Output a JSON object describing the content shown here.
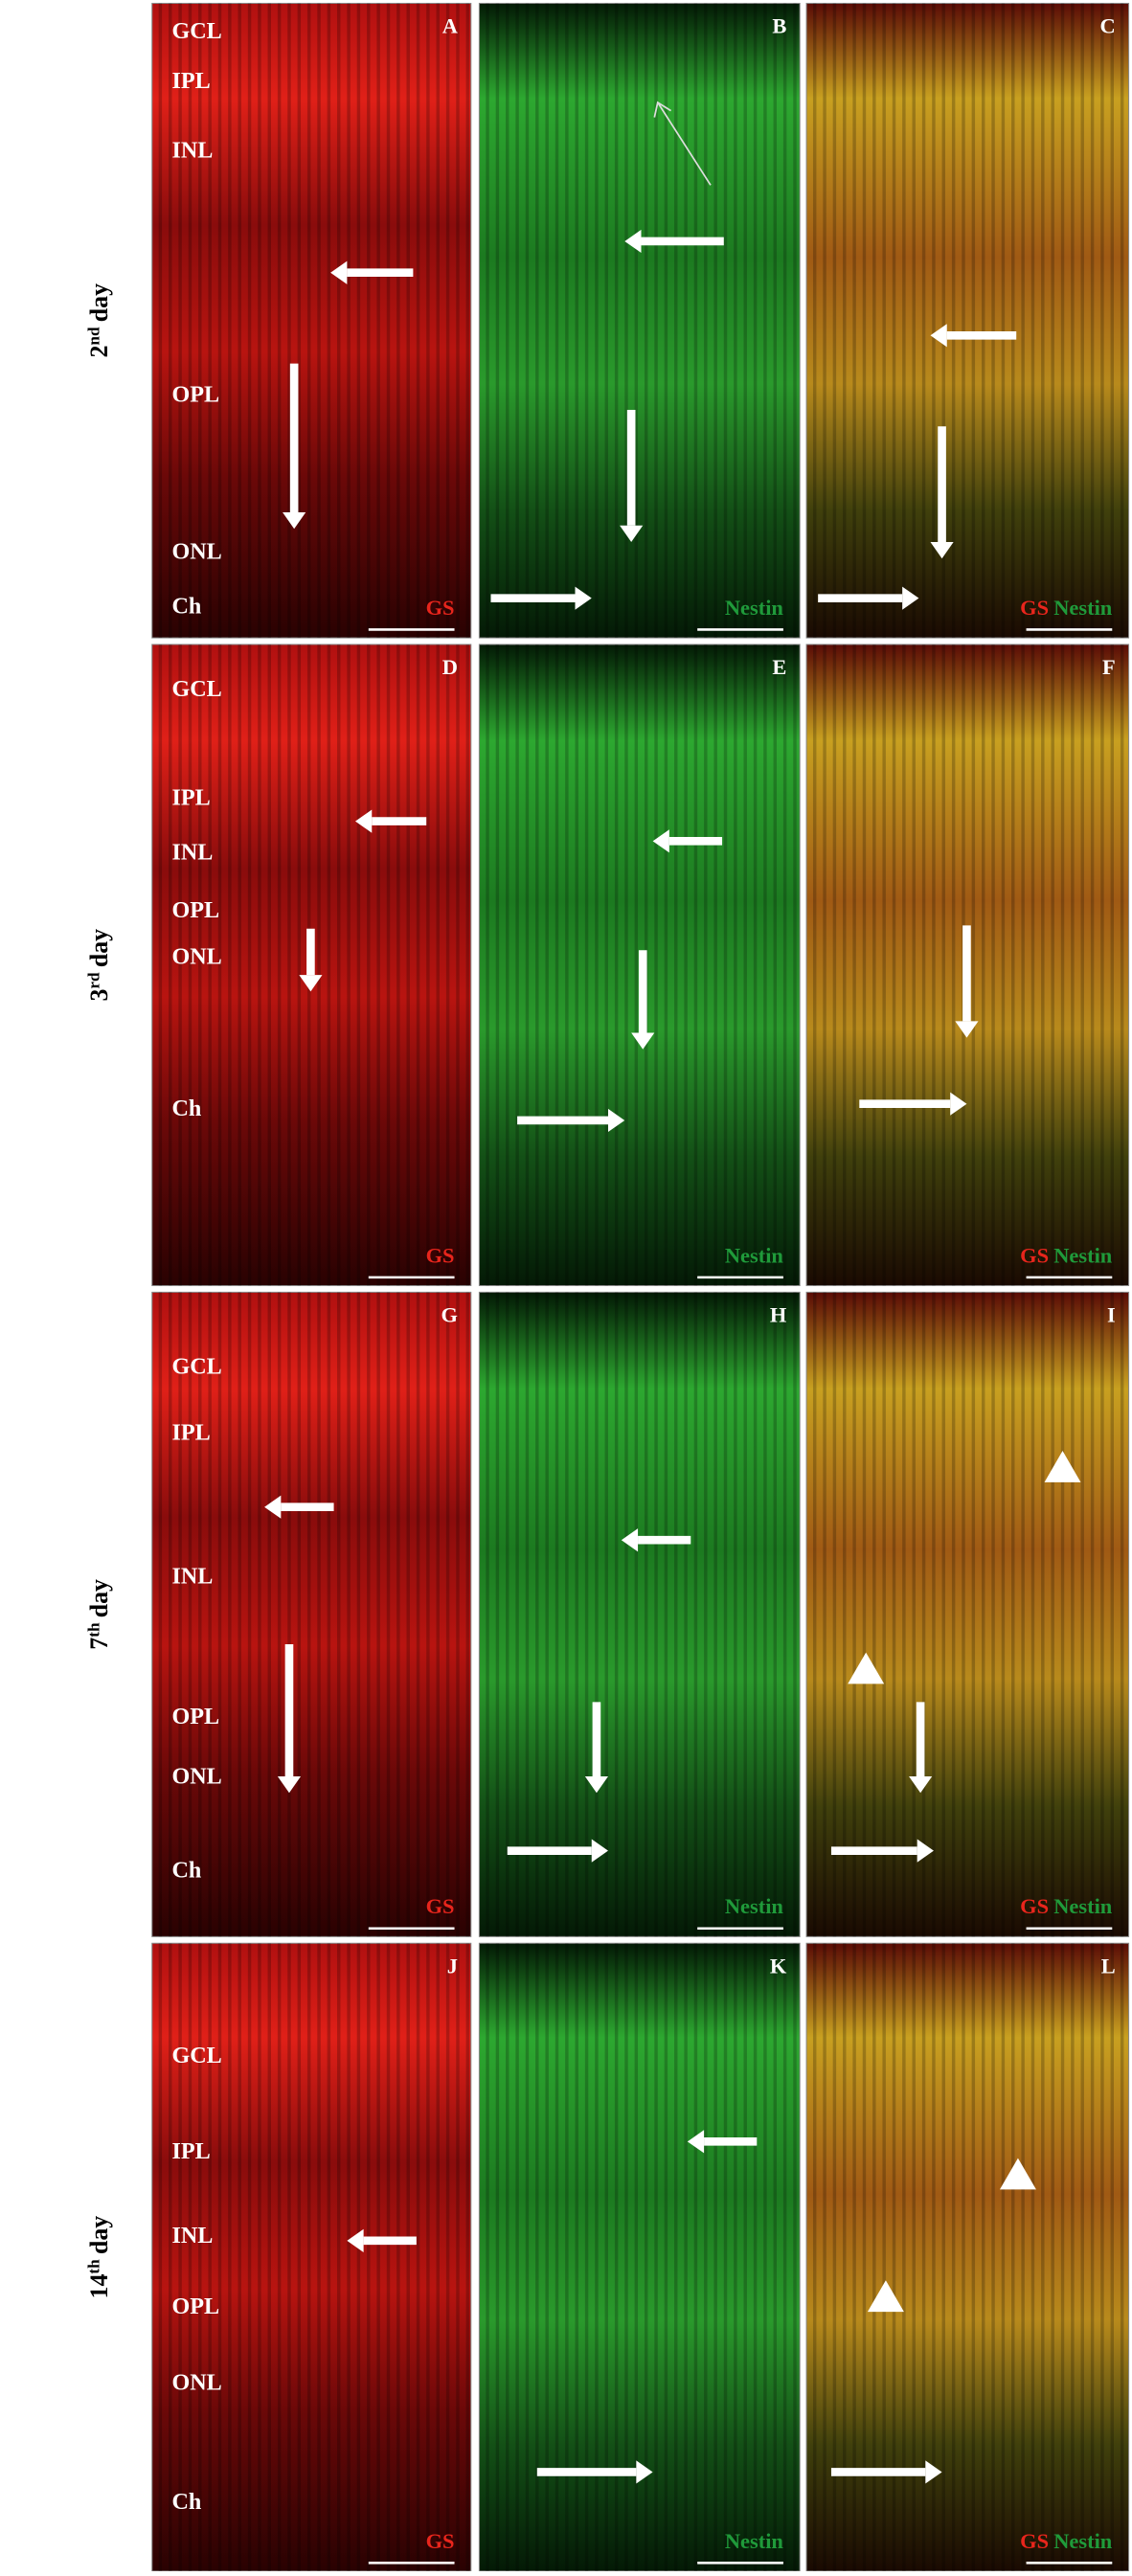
{
  "rows": [
    {
      "day": {
        "number": "2",
        "suffix": "nd",
        "unit": "day"
      },
      "layers": [
        "GCL",
        "IPL",
        "INL",
        "OPL",
        "ONL",
        "Ch"
      ],
      "panels": [
        {
          "letter": "A",
          "stains": [
            {
              "name": "GS",
              "color": "#e8251c"
            }
          ]
        },
        {
          "letter": "B",
          "stains": [
            {
              "name": "Nestin",
              "color": "#1f9a3a"
            }
          ]
        },
        {
          "letter": "C",
          "stains": [
            {
              "name": "GS",
              "color": "#e8251c"
            },
            {
              "name": "Nestin",
              "color": "#1f9a3a"
            }
          ]
        }
      ]
    },
    {
      "day": {
        "number": "3",
        "suffix": "rd",
        "unit": "day"
      },
      "layers": [
        "GCL",
        "IPL",
        "INL",
        "OPL",
        "ONL",
        "Ch"
      ],
      "panels": [
        {
          "letter": "D",
          "stains": [
            {
              "name": "GS",
              "color": "#e8251c"
            }
          ]
        },
        {
          "letter": "E",
          "stains": [
            {
              "name": "Nestin",
              "color": "#1f9a3a"
            }
          ]
        },
        {
          "letter": "F",
          "stains": [
            {
              "name": "GS",
              "color": "#e8251c"
            },
            {
              "name": "Nestin",
              "color": "#1f9a3a"
            }
          ]
        }
      ]
    },
    {
      "day": {
        "number": "7",
        "suffix": "th",
        "unit": "day"
      },
      "layers": [
        "GCL",
        "IPL",
        "INL",
        "OPL",
        "ONL",
        "Ch"
      ],
      "panels": [
        {
          "letter": "G",
          "stains": [
            {
              "name": "GS",
              "color": "#e8251c"
            }
          ]
        },
        {
          "letter": "H",
          "stains": [
            {
              "name": "Nestin",
              "color": "#1f9a3a"
            }
          ]
        },
        {
          "letter": "I",
          "stains": [
            {
              "name": "GS",
              "color": "#e8251c"
            },
            {
              "name": "Nestin",
              "color": "#1f9a3a"
            }
          ]
        }
      ]
    },
    {
      "day": {
        "number": "14",
        "suffix": "th",
        "unit": "day"
      },
      "layers": [
        "GCL",
        "IPL",
        "INL",
        "OPL",
        "ONL",
        "Ch"
      ],
      "panels": [
        {
          "letter": "J",
          "stains": [
            {
              "name": "GS",
              "color": "#e8251c"
            }
          ]
        },
        {
          "letter": "K",
          "stains": [
            {
              "name": "Nestin",
              "color": "#1f9a3a"
            }
          ]
        },
        {
          "letter": "L",
          "stains": [
            {
              "name": "GS",
              "color": "#e8251c"
            },
            {
              "name": "Nestin",
              "color": "#1f9a3a"
            }
          ]
        }
      ]
    }
  ]
}
